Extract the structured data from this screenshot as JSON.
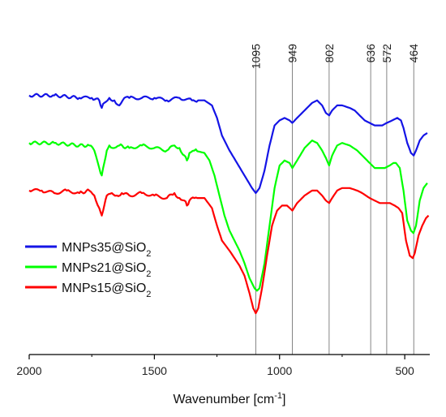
{
  "chart_data": {
    "type": "line",
    "xlabel": "Wavenumber [cm",
    "xlabel_sup": "-1",
    "xlabel_end": "]",
    "ylabel": "",
    "xlim": [
      2000,
      400
    ],
    "x_reversed": true,
    "x_ticks": [
      2000,
      1500,
      1000,
      500
    ],
    "y_axis_visible": false,
    "grid": false,
    "peaks": [
      1095,
      949,
      802,
      636,
      572,
      464
    ],
    "legend_position": "bottom-left",
    "series": [
      {
        "name": "MNPs35@SiO2",
        "label_main": "MNPs35@SiO",
        "label_sub": "2",
        "color": "#1414e6",
        "points": [
          [
            2000,
            0.82
          ],
          [
            1900,
            0.82
          ],
          [
            1800,
            0.81
          ],
          [
            1750,
            0.81
          ],
          [
            1720,
            0.8
          ],
          [
            1710,
            0.77
          ],
          [
            1700,
            0.79
          ],
          [
            1680,
            0.81
          ],
          [
            1660,
            0.8
          ],
          [
            1640,
            0.78
          ],
          [
            1620,
            0.81
          ],
          [
            1600,
            0.81
          ],
          [
            1550,
            0.81
          ],
          [
            1500,
            0.81
          ],
          [
            1450,
            0.8
          ],
          [
            1400,
            0.81
          ],
          [
            1350,
            0.8
          ],
          [
            1300,
            0.8
          ],
          [
            1270,
            0.78
          ],
          [
            1250,
            0.73
          ],
          [
            1230,
            0.66
          ],
          [
            1200,
            0.6
          ],
          [
            1170,
            0.55
          ],
          [
            1140,
            0.5
          ],
          [
            1110,
            0.45
          ],
          [
            1095,
            0.43
          ],
          [
            1080,
            0.45
          ],
          [
            1060,
            0.52
          ],
          [
            1040,
            0.62
          ],
          [
            1020,
            0.7
          ],
          [
            1000,
            0.72
          ],
          [
            980,
            0.73
          ],
          [
            960,
            0.72
          ],
          [
            949,
            0.71
          ],
          [
            930,
            0.73
          ],
          [
            900,
            0.76
          ],
          [
            870,
            0.79
          ],
          [
            850,
            0.8
          ],
          [
            830,
            0.78
          ],
          [
            815,
            0.75
          ],
          [
            802,
            0.74
          ],
          [
            790,
            0.76
          ],
          [
            770,
            0.78
          ],
          [
            750,
            0.78
          ],
          [
            720,
            0.77
          ],
          [
            700,
            0.76
          ],
          [
            680,
            0.74
          ],
          [
            660,
            0.72
          ],
          [
            640,
            0.71
          ],
          [
            620,
            0.7
          ],
          [
            600,
            0.7
          ],
          [
            590,
            0.7
          ],
          [
            572,
            0.71
          ],
          [
            550,
            0.72
          ],
          [
            530,
            0.73
          ],
          [
            515,
            0.72
          ],
          [
            505,
            0.69
          ],
          [
            490,
            0.63
          ],
          [
            475,
            0.59
          ],
          [
            464,
            0.58
          ],
          [
            455,
            0.6
          ],
          [
            440,
            0.64
          ],
          [
            425,
            0.66
          ],
          [
            410,
            0.67
          ]
        ]
      },
      {
        "name": "MNPs21@SiO2",
        "label_main": "MNPs21@SiO",
        "label_sub": "2",
        "color": "#00ff00",
        "points": [
          [
            2000,
            0.63
          ],
          [
            1900,
            0.63
          ],
          [
            1800,
            0.62
          ],
          [
            1760,
            0.62
          ],
          [
            1740,
            0.6
          ],
          [
            1720,
            0.53
          ],
          [
            1710,
            0.5
          ],
          [
            1700,
            0.55
          ],
          [
            1690,
            0.6
          ],
          [
            1680,
            0.62
          ],
          [
            1660,
            0.61
          ],
          [
            1640,
            0.62
          ],
          [
            1600,
            0.61
          ],
          [
            1550,
            0.62
          ],
          [
            1500,
            0.61
          ],
          [
            1450,
            0.6
          ],
          [
            1420,
            0.62
          ],
          [
            1400,
            0.61
          ],
          [
            1380,
            0.58
          ],
          [
            1370,
            0.56
          ],
          [
            1360,
            0.59
          ],
          [
            1340,
            0.6
          ],
          [
            1300,
            0.59
          ],
          [
            1280,
            0.56
          ],
          [
            1260,
            0.5
          ],
          [
            1240,
            0.42
          ],
          [
            1220,
            0.34
          ],
          [
            1200,
            0.28
          ],
          [
            1180,
            0.24
          ],
          [
            1160,
            0.2
          ],
          [
            1140,
            0.15
          ],
          [
            1120,
            0.09
          ],
          [
            1100,
            0.05
          ],
          [
            1090,
            0.04
          ],
          [
            1080,
            0.05
          ],
          [
            1060,
            0.15
          ],
          [
            1040,
            0.3
          ],
          [
            1020,
            0.45
          ],
          [
            1000,
            0.54
          ],
          [
            980,
            0.56
          ],
          [
            960,
            0.55
          ],
          [
            949,
            0.53
          ],
          [
            930,
            0.56
          ],
          [
            900,
            0.61
          ],
          [
            870,
            0.64
          ],
          [
            850,
            0.63
          ],
          [
            830,
            0.6
          ],
          [
            815,
            0.57
          ],
          [
            802,
            0.54
          ],
          [
            790,
            0.58
          ],
          [
            770,
            0.62
          ],
          [
            750,
            0.63
          ],
          [
            720,
            0.62
          ],
          [
            690,
            0.6
          ],
          [
            660,
            0.57
          ],
          [
            640,
            0.55
          ],
          [
            620,
            0.53
          ],
          [
            600,
            0.53
          ],
          [
            580,
            0.53
          ],
          [
            560,
            0.54
          ],
          [
            545,
            0.55
          ],
          [
            535,
            0.55
          ],
          [
            520,
            0.53
          ],
          [
            505,
            0.44
          ],
          [
            490,
            0.32
          ],
          [
            475,
            0.28
          ],
          [
            465,
            0.27
          ],
          [
            455,
            0.3
          ],
          [
            440,
            0.4
          ],
          [
            425,
            0.45
          ],
          [
            410,
            0.47
          ]
        ]
      },
      {
        "name": "MNPs15@SiO2",
        "label_main": "MNPs15@SiO",
        "label_sub": "2",
        "color": "#ff0000",
        "points": [
          [
            2000,
            0.44
          ],
          [
            1950,
            0.44
          ],
          [
            1900,
            0.43
          ],
          [
            1850,
            0.44
          ],
          [
            1800,
            0.43
          ],
          [
            1760,
            0.44
          ],
          [
            1740,
            0.42
          ],
          [
            1720,
            0.37
          ],
          [
            1710,
            0.34
          ],
          [
            1700,
            0.38
          ],
          [
            1690,
            0.42
          ],
          [
            1670,
            0.43
          ],
          [
            1650,
            0.42
          ],
          [
            1630,
            0.43
          ],
          [
            1600,
            0.42
          ],
          [
            1550,
            0.43
          ],
          [
            1500,
            0.42
          ],
          [
            1450,
            0.41
          ],
          [
            1420,
            0.43
          ],
          [
            1400,
            0.41
          ],
          [
            1380,
            0.4
          ],
          [
            1370,
            0.38
          ],
          [
            1360,
            0.4
          ],
          [
            1340,
            0.41
          ],
          [
            1300,
            0.41
          ],
          [
            1270,
            0.37
          ],
          [
            1250,
            0.3
          ],
          [
            1230,
            0.24
          ],
          [
            1200,
            0.2
          ],
          [
            1180,
            0.17
          ],
          [
            1160,
            0.14
          ],
          [
            1140,
            0.1
          ],
          [
            1120,
            0.03
          ],
          [
            1105,
            -0.03
          ],
          [
            1095,
            -0.05
          ],
          [
            1085,
            -0.03
          ],
          [
            1070,
            0.05
          ],
          [
            1050,
            0.18
          ],
          [
            1030,
            0.3
          ],
          [
            1010,
            0.36
          ],
          [
            990,
            0.38
          ],
          [
            970,
            0.38
          ],
          [
            949,
            0.36
          ],
          [
            930,
            0.39
          ],
          [
            900,
            0.42
          ],
          [
            870,
            0.44
          ],
          [
            850,
            0.44
          ],
          [
            830,
            0.42
          ],
          [
            815,
            0.4
          ],
          [
            802,
            0.39
          ],
          [
            790,
            0.41
          ],
          [
            770,
            0.44
          ],
          [
            750,
            0.45
          ],
          [
            720,
            0.45
          ],
          [
            690,
            0.44
          ],
          [
            670,
            0.43
          ],
          [
            640,
            0.41
          ],
          [
            620,
            0.4
          ],
          [
            600,
            0.39
          ],
          [
            580,
            0.39
          ],
          [
            560,
            0.39
          ],
          [
            540,
            0.38
          ],
          [
            525,
            0.37
          ],
          [
            510,
            0.35
          ],
          [
            495,
            0.24
          ],
          [
            480,
            0.18
          ],
          [
            468,
            0.17
          ],
          [
            460,
            0.19
          ],
          [
            445,
            0.26
          ],
          [
            430,
            0.3
          ],
          [
            415,
            0.33
          ],
          [
            405,
            0.34
          ]
        ]
      }
    ]
  }
}
